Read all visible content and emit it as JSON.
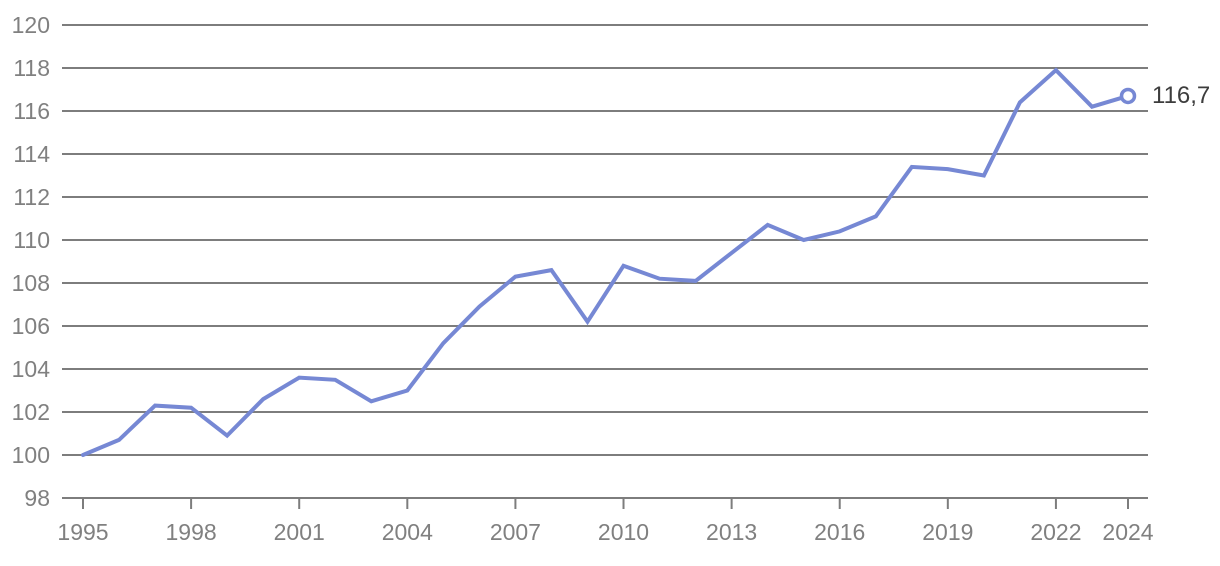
{
  "chart_data": {
    "type": "line",
    "title": "",
    "xlabel": "",
    "ylabel": "",
    "x": [
      1995,
      1996,
      1997,
      1998,
      1999,
      2000,
      2001,
      2002,
      2003,
      2004,
      2005,
      2006,
      2007,
      2008,
      2009,
      2010,
      2011,
      2012,
      2013,
      2014,
      2015,
      2016,
      2017,
      2018,
      2019,
      2020,
      2021,
      2022,
      2023,
      2024
    ],
    "series": [
      {
        "name": "index-line",
        "values": [
          100.0,
          100.7,
          102.3,
          102.2,
          100.9,
          102.6,
          103.6,
          103.5,
          102.5,
          103.0,
          105.2,
          106.9,
          108.3,
          108.6,
          106.2,
          108.8,
          108.2,
          108.1,
          109.4,
          110.7,
          110.0,
          110.4,
          111.1,
          113.4,
          113.3,
          113.0,
          116.4,
          117.9,
          116.2,
          116.7
        ]
      }
    ],
    "end_label": "116,7",
    "last_point": {
      "x": 2024,
      "y": 116.7
    },
    "ylim": [
      98,
      120
    ],
    "y_ticks": [
      98,
      100,
      102,
      104,
      106,
      108,
      110,
      112,
      114,
      116,
      118,
      120
    ],
    "x_ticks": [
      1995,
      1998,
      2001,
      2004,
      2007,
      2010,
      2013,
      2016,
      2019,
      2022,
      2024
    ],
    "grid": "horizontal-only",
    "legend": "none",
    "colors": {
      "line": "#7688d4",
      "grid": "#7d7d7d",
      "tick_label": "#808080",
      "end_label": "#3d3d3d",
      "marker_fill": "#ffffff",
      "background": "#ffffff"
    }
  }
}
